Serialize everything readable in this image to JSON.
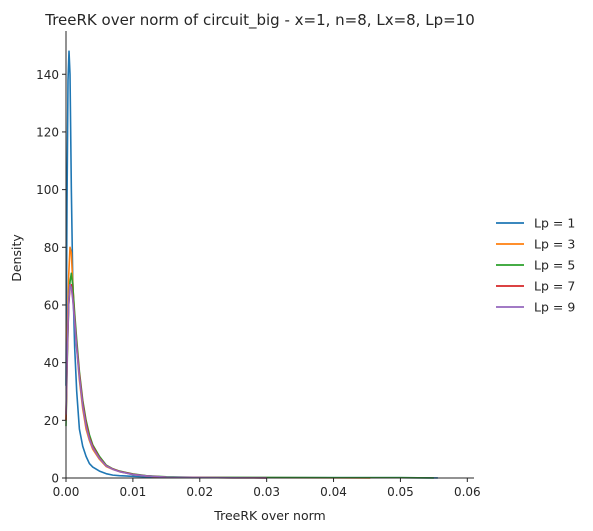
{
  "chart_data": {
    "type": "line",
    "title": "TreeRK over norm of circuit_big - x=1, n=8, Lx=8, Lp=10",
    "xlabel": "TreeRK over norm",
    "ylabel": "Density",
    "xlim": [
      0,
      0.061
    ],
    "ylim": [
      0,
      155
    ],
    "xticks": [
      0,
      0.01,
      0.02,
      0.03,
      0.04,
      0.05,
      0.06
    ],
    "xtick_labels": [
      "0.00",
      "0.01",
      "0.02",
      "0.03",
      "0.04",
      "0.05",
      "0.06"
    ],
    "yticks": [
      0,
      20,
      40,
      60,
      80,
      100,
      120,
      140
    ],
    "ytick_labels": [
      "0",
      "20",
      "40",
      "60",
      "80",
      "100",
      "120",
      "140"
    ],
    "grid": false,
    "legend_position": "right",
    "series": [
      {
        "name": "Lp = 1",
        "color": "#1f77b4",
        "points": [
          [
            0.0,
            32
          ],
          [
            0.00015,
            95
          ],
          [
            0.0003,
            138
          ],
          [
            0.00045,
            148
          ],
          [
            0.0006,
            140
          ],
          [
            0.0008,
            100
          ],
          [
            0.001,
            70
          ],
          [
            0.0013,
            45
          ],
          [
            0.0016,
            30
          ],
          [
            0.002,
            17
          ],
          [
            0.0025,
            11
          ],
          [
            0.003,
            7.5
          ],
          [
            0.0035,
            5
          ],
          [
            0.004,
            3.8
          ],
          [
            0.005,
            2.4
          ],
          [
            0.006,
            1.5
          ],
          [
            0.007,
            1.0
          ],
          [
            0.008,
            0.8
          ],
          [
            0.01,
            0.6
          ],
          [
            0.012,
            0.4
          ],
          [
            0.014,
            0.3
          ],
          [
            0.02,
            0.2
          ],
          [
            0.03,
            0.15
          ],
          [
            0.04,
            0.12
          ],
          [
            0.05,
            0.1
          ],
          [
            0.0556,
            0.02
          ]
        ]
      },
      {
        "name": "Lp = 3",
        "color": "#ff7f0e",
        "points": [
          [
            0.0,
            20
          ],
          [
            0.0002,
            50
          ],
          [
            0.0004,
            70
          ],
          [
            0.0006,
            80
          ],
          [
            0.0008,
            78
          ],
          [
            0.001,
            68
          ],
          [
            0.0013,
            55
          ],
          [
            0.0016,
            45
          ],
          [
            0.002,
            34
          ],
          [
            0.0025,
            24
          ],
          [
            0.003,
            17
          ],
          [
            0.0035,
            13
          ],
          [
            0.004,
            10
          ],
          [
            0.005,
            6.5
          ],
          [
            0.006,
            4
          ],
          [
            0.007,
            3
          ],
          [
            0.008,
            2.2
          ],
          [
            0.01,
            1.2
          ],
          [
            0.012,
            0.7
          ],
          [
            0.015,
            0.3
          ],
          [
            0.02,
            0.15
          ],
          [
            0.03,
            0.1
          ],
          [
            0.04,
            0.08
          ],
          [
            0.0455,
            0.02
          ]
        ]
      },
      {
        "name": "Lp = 5",
        "color": "#2ca02c",
        "points": [
          [
            0.0,
            18
          ],
          [
            0.0002,
            42
          ],
          [
            0.0004,
            60
          ],
          [
            0.0006,
            68
          ],
          [
            0.0008,
            71
          ],
          [
            0.001,
            67
          ],
          [
            0.0013,
            57
          ],
          [
            0.0016,
            48
          ],
          [
            0.002,
            37
          ],
          [
            0.0025,
            27
          ],
          [
            0.003,
            20
          ],
          [
            0.0035,
            15
          ],
          [
            0.004,
            11.5
          ],
          [
            0.005,
            7.5
          ],
          [
            0.006,
            4.5
          ],
          [
            0.007,
            3.2
          ],
          [
            0.008,
            2.4
          ],
          [
            0.01,
            1.4
          ],
          [
            0.012,
            0.8
          ],
          [
            0.015,
            0.4
          ],
          [
            0.02,
            0.2
          ],
          [
            0.03,
            0.15
          ],
          [
            0.04,
            0.12
          ],
          [
            0.05,
            0.1
          ],
          [
            0.055,
            0.02
          ]
        ]
      },
      {
        "name": "Lp = 7",
        "color": "#d62728",
        "points": [
          [
            0.0,
            20
          ],
          [
            0.0002,
            44
          ],
          [
            0.0004,
            60
          ],
          [
            0.0006,
            66
          ],
          [
            0.0008,
            67
          ],
          [
            0.001,
            63
          ],
          [
            0.0013,
            55
          ],
          [
            0.0016,
            46
          ],
          [
            0.002,
            36
          ],
          [
            0.0025,
            26
          ],
          [
            0.003,
            19
          ],
          [
            0.0035,
            14
          ],
          [
            0.004,
            11
          ],
          [
            0.005,
            7
          ],
          [
            0.006,
            4.3
          ],
          [
            0.007,
            3.1
          ],
          [
            0.008,
            2.3
          ],
          [
            0.01,
            1.3
          ],
          [
            0.012,
            0.7
          ],
          [
            0.015,
            0.3
          ],
          [
            0.02,
            0.15
          ],
          [
            0.025,
            0.08
          ],
          [
            0.03,
            0.02
          ]
        ]
      },
      {
        "name": "Lp = 9",
        "color": "#9467bd",
        "points": [
          [
            0.0,
            22
          ],
          [
            0.0002,
            46
          ],
          [
            0.0004,
            61
          ],
          [
            0.0006,
            67
          ],
          [
            0.0008,
            66
          ],
          [
            0.001,
            62
          ],
          [
            0.0013,
            54
          ],
          [
            0.0016,
            45
          ],
          [
            0.002,
            35
          ],
          [
            0.0025,
            25
          ],
          [
            0.003,
            18
          ],
          [
            0.0035,
            13.5
          ],
          [
            0.004,
            10.5
          ],
          [
            0.005,
            6.8
          ],
          [
            0.006,
            4.2
          ],
          [
            0.007,
            3
          ],
          [
            0.008,
            2.2
          ],
          [
            0.01,
            1.2
          ],
          [
            0.012,
            0.7
          ],
          [
            0.015,
            0.3
          ],
          [
            0.02,
            0.15
          ],
          [
            0.025,
            0.08
          ],
          [
            0.03,
            0.02
          ]
        ]
      }
    ]
  }
}
